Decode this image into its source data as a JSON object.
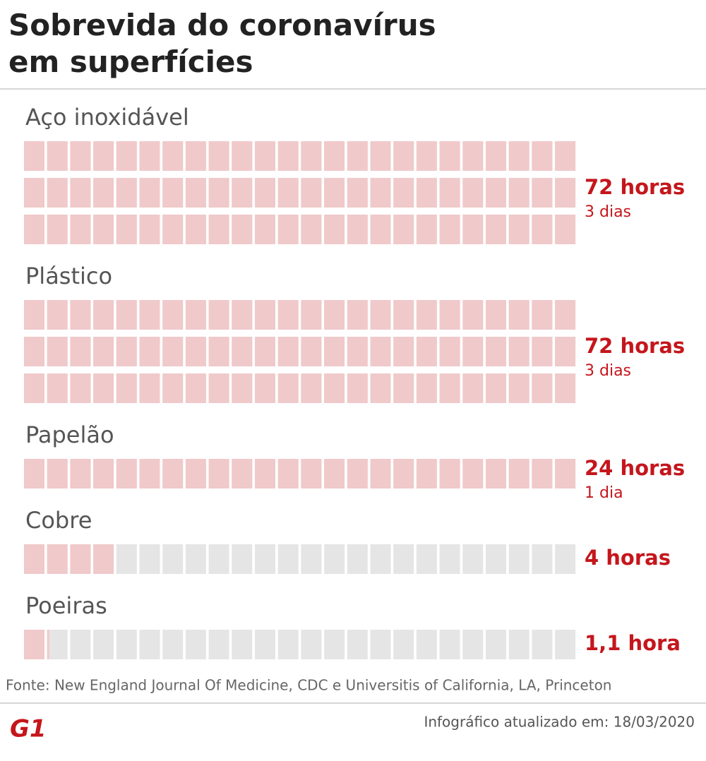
{
  "chart_data": {
    "type": "waffle",
    "title": "Sobrevida do coronavírus em superfícies",
    "categories": [
      "Aço inoxidável",
      "Plástico",
      "Papelão",
      "Cobre",
      "Poeiras"
    ],
    "values": [
      72,
      72,
      24,
      4,
      1.1
    ],
    "value_labels": [
      "72 horas",
      "72 horas",
      "24 horas",
      "4 horas",
      "1,1 hora"
    ],
    "sub_labels": [
      "3 dias",
      "3 dias",
      "1 dia",
      null,
      null
    ],
    "color": "#f0c9ca",
    "empty_color": "#e5e5e5",
    "label_color": "#c4161c",
    "source": "Fonte: New England Journal Of Medicine, CDC e Universitis of California, LA, Princeton",
    "updated": "Infográfico atualizado em: 18/03/2020",
    "logo": "G1"
  }
}
